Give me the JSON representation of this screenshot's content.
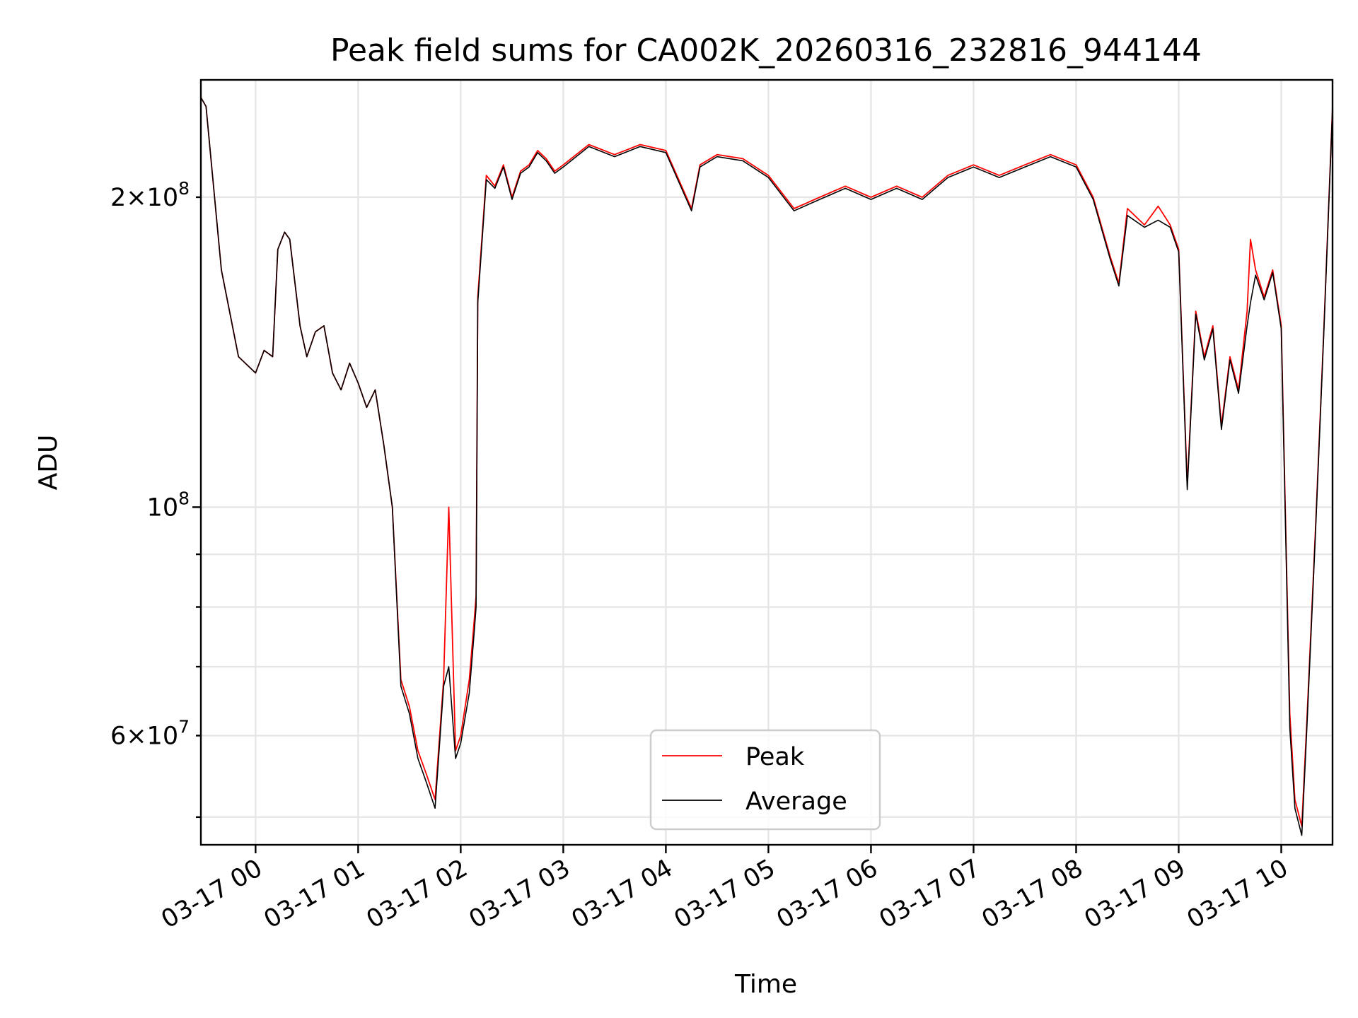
{
  "chart_data": {
    "type": "line",
    "title": "Peak field sums for CA002K_20260316_232816_944144",
    "xlabel": "Time",
    "ylabel": "ADU",
    "x_range": [
      "2026-03-16 23:28",
      "2026-03-17 10:30"
    ],
    "y_scale": "log",
    "ylim": [
      47000000,
      260000000
    ],
    "grid": true,
    "legend_position": "lower center",
    "x_ticks": [
      "03-17 00",
      "03-17 01",
      "03-17 02",
      "03-17 03",
      "03-17 04",
      "03-17 05",
      "03-17 06",
      "03-17 07",
      "03-17 08",
      "03-17 09",
      "03-17 10"
    ],
    "y_ticks_major": [
      {
        "value": 100000000,
        "mantissa": "",
        "base": "10",
        "exp": "8"
      }
    ],
    "y_ticks_minor": [
      {
        "value": 60000000,
        "mantissa": "6",
        "base": "10",
        "exp": "7"
      },
      {
        "value": 200000000,
        "mantissa": "2",
        "base": "10",
        "exp": "8"
      }
    ],
    "y_ticks_unlabeled": [
      50000000,
      70000000,
      80000000,
      90000000
    ],
    "series": [
      {
        "name": "Peak",
        "color": "#ff0000",
        "x": [
          "2026-03-16 23:28",
          "2026-03-16 23:31",
          "2026-03-16 23:40",
          "2026-03-16 23:50",
          "2026-03-17 00:00",
          "2026-03-17 00:05",
          "2026-03-17 00:10",
          "2026-03-17 00:13",
          "2026-03-17 00:17",
          "2026-03-17 00:20",
          "2026-03-17 00:26",
          "2026-03-17 00:30",
          "2026-03-17 00:35",
          "2026-03-17 00:40",
          "2026-03-17 00:45",
          "2026-03-17 00:50",
          "2026-03-17 00:55",
          "2026-03-17 01:00",
          "2026-03-17 01:05",
          "2026-03-17 01:10",
          "2026-03-17 01:15",
          "2026-03-17 01:20",
          "2026-03-17 01:25",
          "2026-03-17 01:30",
          "2026-03-17 01:35",
          "2026-03-17 01:40",
          "2026-03-17 01:45",
          "2026-03-17 01:50",
          "2026-03-17 01:53",
          "2026-03-17 01:57",
          "2026-03-17 02:00",
          "2026-03-17 02:05",
          "2026-03-17 02:08",
          "2026-03-17 02:09",
          "2026-03-17 02:10",
          "2026-03-17 02:15",
          "2026-03-17 02:20",
          "2026-03-17 02:25",
          "2026-03-17 02:30",
          "2026-03-17 02:35",
          "2026-03-17 02:40",
          "2026-03-17 02:45",
          "2026-03-17 02:50",
          "2026-03-17 02:55",
          "2026-03-17 03:00",
          "2026-03-17 03:15",
          "2026-03-17 03:30",
          "2026-03-17 03:45",
          "2026-03-17 04:00",
          "2026-03-17 04:15",
          "2026-03-17 04:20",
          "2026-03-17 04:30",
          "2026-03-17 04:45",
          "2026-03-17 05:00",
          "2026-03-17 05:15",
          "2026-03-17 05:30",
          "2026-03-17 05:45",
          "2026-03-17 06:00",
          "2026-03-17 06:15",
          "2026-03-17 06:30",
          "2026-03-17 06:45",
          "2026-03-17 07:00",
          "2026-03-17 07:15",
          "2026-03-17 07:30",
          "2026-03-17 07:45",
          "2026-03-17 08:00",
          "2026-03-17 08:10",
          "2026-03-17 08:20",
          "2026-03-17 08:25",
          "2026-03-17 08:30",
          "2026-03-17 08:40",
          "2026-03-17 08:48",
          "2026-03-17 08:55",
          "2026-03-17 09:00",
          "2026-03-17 09:05",
          "2026-03-17 09:10",
          "2026-03-17 09:15",
          "2026-03-17 09:20",
          "2026-03-17 09:25",
          "2026-03-17 09:30",
          "2026-03-17 09:35",
          "2026-03-17 09:40",
          "2026-03-17 09:42",
          "2026-03-17 09:45",
          "2026-03-17 09:50",
          "2026-03-17 09:55",
          "2026-03-17 10:00",
          "2026-03-17 10:05",
          "2026-03-17 10:08",
          "2026-03-17 10:12",
          "2026-03-17 10:15",
          "2026-03-17 10:20",
          "2026-03-17 10:25",
          "2026-03-17 10:30"
        ],
        "values": [
          250000000,
          245000000,
          170000000,
          140000000,
          135000000,
          142000000,
          140000000,
          178000000,
          185000000,
          182000000,
          150000000,
          140000000,
          148000000,
          150000000,
          135000000,
          130000000,
          138000000,
          132000000,
          125000000,
          130000000,
          115000000,
          100000000,
          68000000,
          64000000,
          58000000,
          55000000,
          52000000,
          68000000,
          100000000,
          58000000,
          60000000,
          68000000,
          78000000,
          82000000,
          160000000,
          210000000,
          205000000,
          215000000,
          200000000,
          212000000,
          215000000,
          222000000,
          218000000,
          212000000,
          215000000,
          225000000,
          220000000,
          225000000,
          222000000,
          195000000,
          215000000,
          220000000,
          218000000,
          210000000,
          195000000,
          200000000,
          205000000,
          200000000,
          205000000,
          200000000,
          210000000,
          215000000,
          210000000,
          215000000,
          220000000,
          215000000,
          200000000,
          175000000,
          165000000,
          195000000,
          188000000,
          196000000,
          188000000,
          178000000,
          105000000,
          155000000,
          140000000,
          150000000,
          120000000,
          140000000,
          130000000,
          155000000,
          182000000,
          170000000,
          160000000,
          170000000,
          150000000,
          63000000,
          52000000,
          49000000,
          62000000,
          95000000,
          150000000,
          245000000
        ]
      },
      {
        "name": "Average",
        "color": "#000000",
        "x": [
          "2026-03-16 23:28",
          "2026-03-16 23:31",
          "2026-03-16 23:40",
          "2026-03-16 23:50",
          "2026-03-17 00:00",
          "2026-03-17 00:05",
          "2026-03-17 00:10",
          "2026-03-17 00:13",
          "2026-03-17 00:17",
          "2026-03-17 00:20",
          "2026-03-17 00:26",
          "2026-03-17 00:30",
          "2026-03-17 00:35",
          "2026-03-17 00:40",
          "2026-03-17 00:45",
          "2026-03-17 00:50",
          "2026-03-17 00:55",
          "2026-03-17 01:00",
          "2026-03-17 01:05",
          "2026-03-17 01:10",
          "2026-03-17 01:15",
          "2026-03-17 01:20",
          "2026-03-17 01:25",
          "2026-03-17 01:30",
          "2026-03-17 01:35",
          "2026-03-17 01:40",
          "2026-03-17 01:45",
          "2026-03-17 01:50",
          "2026-03-17 01:53",
          "2026-03-17 01:57",
          "2026-03-17 02:00",
          "2026-03-17 02:05",
          "2026-03-17 02:08",
          "2026-03-17 02:09",
          "2026-03-17 02:10",
          "2026-03-17 02:15",
          "2026-03-17 02:20",
          "2026-03-17 02:25",
          "2026-03-17 02:30",
          "2026-03-17 02:35",
          "2026-03-17 02:40",
          "2026-03-17 02:45",
          "2026-03-17 02:50",
          "2026-03-17 02:55",
          "2026-03-17 03:00",
          "2026-03-17 03:15",
          "2026-03-17 03:30",
          "2026-03-17 03:45",
          "2026-03-17 04:00",
          "2026-03-17 04:15",
          "2026-03-17 04:20",
          "2026-03-17 04:30",
          "2026-03-17 04:45",
          "2026-03-17 05:00",
          "2026-03-17 05:15",
          "2026-03-17 05:30",
          "2026-03-17 05:45",
          "2026-03-17 06:00",
          "2026-03-17 06:15",
          "2026-03-17 06:30",
          "2026-03-17 06:45",
          "2026-03-17 07:00",
          "2026-03-17 07:15",
          "2026-03-17 07:30",
          "2026-03-17 07:45",
          "2026-03-17 08:00",
          "2026-03-17 08:10",
          "2026-03-17 08:20",
          "2026-03-17 08:25",
          "2026-03-17 08:30",
          "2026-03-17 08:40",
          "2026-03-17 08:48",
          "2026-03-17 08:55",
          "2026-03-17 09:00",
          "2026-03-17 09:05",
          "2026-03-17 09:10",
          "2026-03-17 09:15",
          "2026-03-17 09:20",
          "2026-03-17 09:25",
          "2026-03-17 09:30",
          "2026-03-17 09:35",
          "2026-03-17 09:40",
          "2026-03-17 09:42",
          "2026-03-17 09:45",
          "2026-03-17 09:50",
          "2026-03-17 09:55",
          "2026-03-17 10:00",
          "2026-03-17 10:05",
          "2026-03-17 10:08",
          "2026-03-17 10:12",
          "2026-03-17 10:15",
          "2026-03-17 10:20",
          "2026-03-17 10:25",
          "2026-03-17 10:30"
        ],
        "values": [
          250000000,
          245000000,
          170000000,
          140000000,
          135000000,
          142000000,
          140000000,
          178000000,
          185000000,
          182000000,
          150000000,
          140000000,
          148000000,
          150000000,
          135000000,
          130000000,
          138000000,
          132000000,
          125000000,
          130000000,
          115000000,
          100000000,
          67000000,
          63000000,
          57000000,
          54000000,
          51000000,
          67000000,
          70000000,
          57000000,
          59000000,
          66000000,
          76000000,
          80000000,
          158000000,
          208000000,
          204000000,
          214000000,
          199000000,
          211000000,
          214000000,
          221000000,
          217000000,
          211000000,
          214000000,
          224000000,
          219000000,
          224000000,
          221000000,
          194000000,
          214000000,
          219000000,
          217000000,
          209000000,
          194000000,
          199000000,
          204000000,
          199000000,
          204000000,
          199000000,
          209000000,
          214000000,
          209000000,
          214000000,
          219000000,
          214000000,
          199000000,
          174000000,
          164000000,
          192000000,
          187000000,
          190000000,
          187000000,
          177000000,
          104000000,
          154000000,
          139000000,
          149000000,
          119000000,
          139000000,
          129000000,
          150000000,
          158000000,
          168000000,
          159000000,
          169000000,
          149000000,
          61000000,
          51000000,
          48000000,
          61000000,
          94000000,
          149000000,
          244000000
        ]
      }
    ]
  }
}
